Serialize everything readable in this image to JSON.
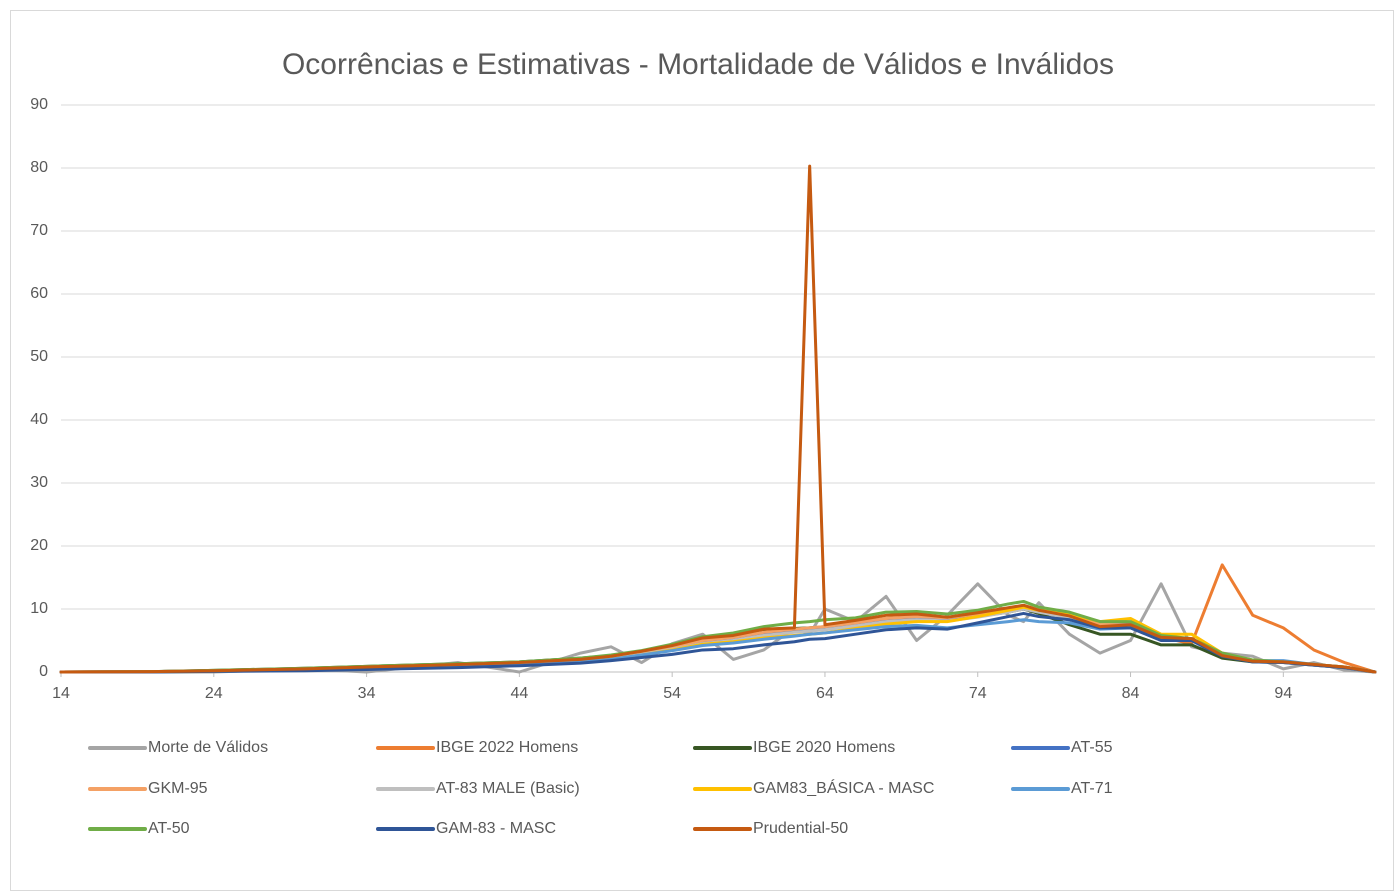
{
  "chart_data": {
    "type": "line",
    "title": "Ocorrências e Estimativas - Mortalidade de Válidos e Inválidos",
    "x": [
      14,
      20,
      24,
      30,
      34,
      40,
      44,
      48,
      50,
      52,
      54,
      56,
      58,
      60,
      62,
      63,
      64,
      66,
      68,
      70,
      72,
      74,
      76,
      77,
      78,
      80,
      82,
      84,
      86,
      88,
      90,
      92,
      94,
      96,
      98,
      100
    ],
    "xlim": [
      14,
      100
    ],
    "xticks": [
      14,
      24,
      34,
      44,
      54,
      64,
      74,
      84,
      94
    ],
    "ylim": [
      0,
      90
    ],
    "yticks": [
      0,
      10,
      20,
      30,
      40,
      50,
      60,
      70,
      80,
      90
    ],
    "grid": true,
    "legend": "bottom",
    "series": [
      {
        "name": "Morte de Válidos",
        "color": "#a5a5a5",
        "values": [
          0,
          0,
          0,
          0.5,
          0,
          1.5,
          0,
          3,
          4,
          1.5,
          4.5,
          6,
          2,
          3.5,
          7,
          6,
          10,
          8,
          12,
          5,
          9,
          14,
          9,
          8,
          11,
          6,
          3,
          5,
          14,
          4,
          3,
          2.5,
          0.5,
          1.5,
          0.3,
          0
        ]
      },
      {
        "name": "IBGE 2022 Homens",
        "color": "#ed7d31",
        "values": [
          0,
          0.05,
          0.2,
          0.5,
          0.8,
          1.2,
          1.5,
          2,
          2.5,
          3.2,
          4,
          5,
          5.5,
          6.3,
          6.8,
          7,
          7.2,
          7.8,
          8.5,
          8.8,
          8.6,
          9.2,
          10,
          10.5,
          10,
          9,
          7.5,
          7.5,
          5.5,
          4.5,
          17,
          9,
          7,
          3.5,
          1.5,
          0
        ]
      },
      {
        "name": "IBGE 2020 Homens",
        "color": "#375623",
        "values": [
          0,
          0.05,
          0.25,
          0.6,
          0.9,
          1.3,
          1.6,
          2.2,
          2.6,
          3.3,
          4.3,
          5.3,
          5.6,
          6.5,
          6.9,
          7,
          7.1,
          7.6,
          8.3,
          8.5,
          8.3,
          8.8,
          9.5,
          10,
          9.3,
          7.5,
          6,
          6,
          4.3,
          4.3,
          2.2,
          1.6,
          1.5,
          1.1,
          0.7,
          0
        ]
      },
      {
        "name": "AT-55",
        "color": "#4472c4",
        "values": [
          0,
          0.05,
          0.2,
          0.4,
          0.6,
          1,
          1.3,
          1.8,
          2.3,
          3,
          3.8,
          4.8,
          5.3,
          6,
          6.5,
          6.8,
          7,
          7.6,
          8.2,
          8.5,
          8.3,
          8.9,
          9.6,
          10,
          9.6,
          8.8,
          7.4,
          7.6,
          5.6,
          5.2,
          2.6,
          1.7,
          1.6,
          1.1,
          0.7,
          0
        ]
      },
      {
        "name": "GKM-95",
        "color": "#f4a165",
        "values": [
          0,
          0.05,
          0.2,
          0.5,
          0.8,
          1.2,
          1.5,
          2,
          2.5,
          3.2,
          4,
          5,
          5.5,
          6.3,
          6.8,
          7,
          7.2,
          7.8,
          8.5,
          8.8,
          8.6,
          9.2,
          10,
          10.5,
          10,
          9,
          7.5,
          7.5,
          5.5,
          5,
          2.8,
          1.8,
          1.6,
          1.2,
          0.8,
          0
        ]
      },
      {
        "name": "AT-83 MALE (Basic)",
        "color": "#bfbfbf",
        "values": [
          0,
          0,
          0.1,
          0.3,
          0.5,
          0.9,
          1.2,
          1.7,
          2.1,
          2.8,
          3.6,
          4.5,
          5,
          5.8,
          6.3,
          6.5,
          6.7,
          7.3,
          8,
          8.3,
          8.1,
          8.7,
          9.5,
          10,
          9.5,
          8.6,
          7.2,
          7.3,
          5.4,
          5,
          2.7,
          1.7,
          1.5,
          1.1,
          0.7,
          0
        ]
      },
      {
        "name": "GAM83_BÁSICA - MASC",
        "color": "#ffc000",
        "values": [
          0,
          0,
          0.1,
          0.3,
          0.5,
          0.8,
          1.1,
          1.6,
          2,
          2.7,
          3.5,
          4.4,
          4.8,
          5.4,
          5.8,
          6,
          6.2,
          6.9,
          7.6,
          8,
          8,
          8.8,
          9.8,
          10.3,
          9.8,
          9.2,
          8,
          8.5,
          6,
          6,
          3,
          1.9,
          1.6,
          1.2,
          0.8,
          0
        ]
      },
      {
        "name": "AT-71",
        "color": "#5b9bd5",
        "values": [
          0,
          0,
          0.1,
          0.3,
          0.5,
          0.8,
          1.1,
          1.6,
          2,
          2.7,
          3.4,
          4.2,
          4.6,
          5.2,
          5.7,
          6,
          6.2,
          6.7,
          7.2,
          7.4,
          7,
          7.5,
          8,
          8.3,
          8,
          7.8,
          6.8,
          7,
          5.3,
          5,
          2.8,
          1.8,
          1.8,
          1.2,
          0.8,
          0
        ]
      },
      {
        "name": "AT-50",
        "color": "#70ad47",
        "values": [
          0,
          0.05,
          0.25,
          0.6,
          0.9,
          1.3,
          1.6,
          2.2,
          2.7,
          3.4,
          4.4,
          5.6,
          6.2,
          7.2,
          7.8,
          8,
          8.3,
          8.6,
          9.5,
          9.6,
          9.2,
          9.8,
          10.8,
          11.2,
          10.3,
          9.5,
          8,
          8,
          5.8,
          5.3,
          3,
          1.9,
          1.6,
          1.2,
          0.8,
          0
        ]
      },
      {
        "name": "GAM-83 - MASC",
        "color": "#2f5597",
        "values": [
          0,
          0,
          0.1,
          0.2,
          0.4,
          0.7,
          1,
          1.4,
          1.8,
          2.3,
          2.8,
          3.5,
          3.7,
          4.3,
          4.8,
          5.2,
          5.3,
          6,
          6.7,
          7,
          6.8,
          7.8,
          8.8,
          9.3,
          8.8,
          8.3,
          7,
          7,
          5,
          5,
          2.5,
          1.6,
          1.5,
          1.1,
          0.7,
          0
        ]
      },
      {
        "name": "Prudential-50",
        "color": "#c55a11",
        "values": [
          0,
          0.05,
          0.2,
          0.5,
          0.8,
          1.2,
          1.5,
          2,
          2.5,
          3.3,
          4.2,
          5.4,
          5.8,
          6.8,
          7,
          80.3,
          7.5,
          8.2,
          9,
          9.2,
          8.7,
          9.4,
          10.2,
          10.6,
          9.8,
          8.9,
          7.2,
          7.5,
          5.5,
          5.3,
          2.6,
          1.7,
          1.6,
          1.2,
          0.8,
          0
        ]
      }
    ]
  }
}
